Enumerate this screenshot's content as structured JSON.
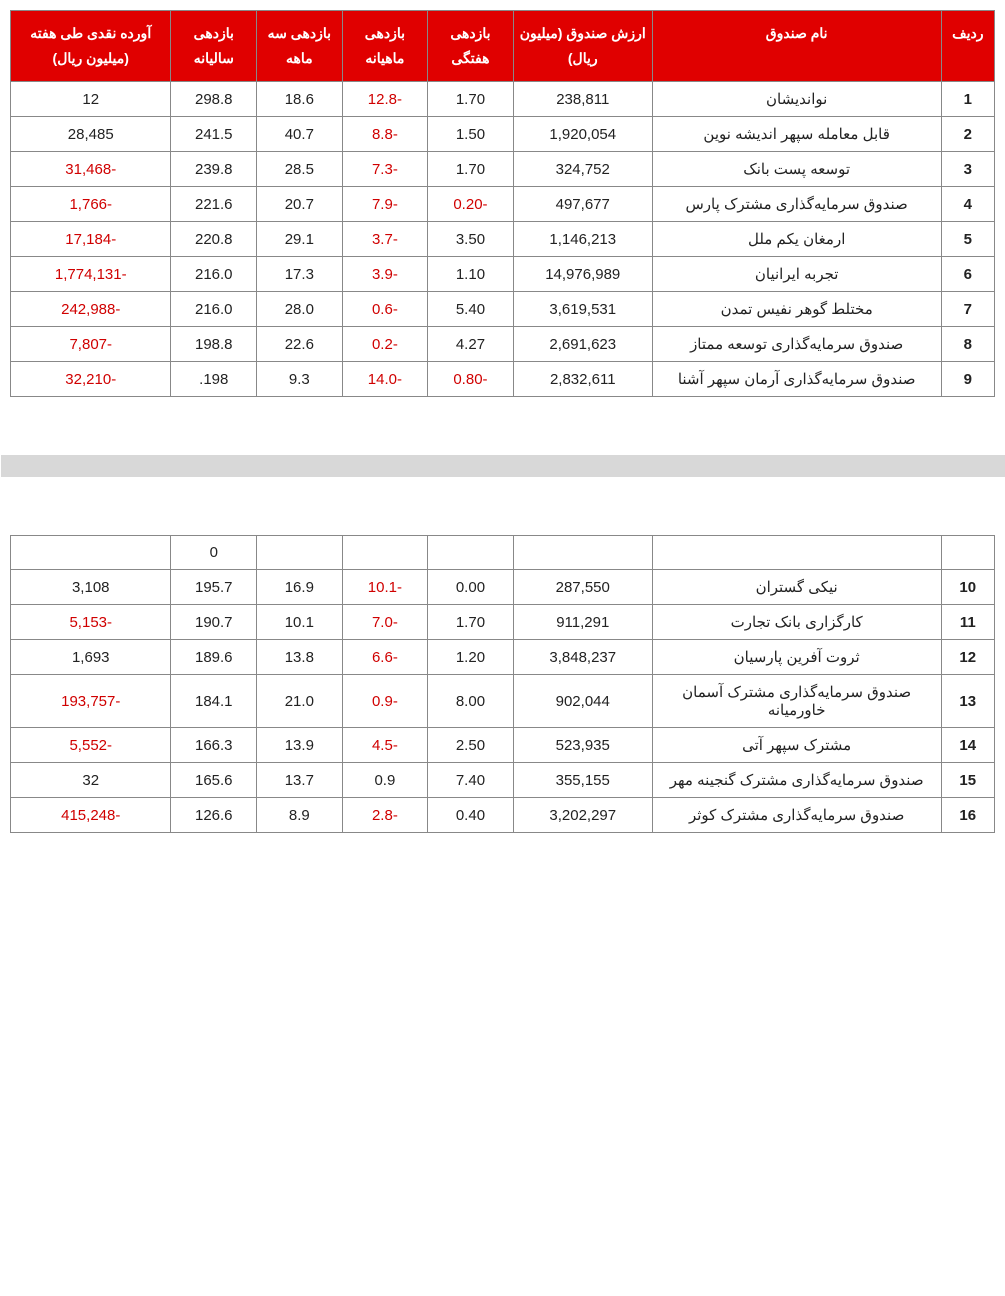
{
  "header": {
    "idx": "ردیف",
    "name": "نام صندوق",
    "value": "ارزش صندوق (میلیون ریال)",
    "weekly": "بازدهی هفتگی",
    "monthly": "بازدهی ماهیانه",
    "quarterly": "بازدهی سه ماهه",
    "yearly": "بازدهی سالیانه",
    "flow": "آورده نقدی طی هفته (میلیون ریال)"
  },
  "rows": [
    {
      "idx": "1",
      "name": "نواندیشان",
      "value": "238,811",
      "w": "1.70",
      "m": "-12.8",
      "q": "18.6",
      "y": "298.8",
      "flow": "12"
    },
    {
      "idx": "2",
      "name": "قابل معامله سپهر اندیشه نوین",
      "value": "1,920,054",
      "w": "1.50",
      "m": "-8.8",
      "q": "40.7",
      "y": "241.5",
      "flow": "28,485"
    },
    {
      "idx": "3",
      "name": "توسعه پست بانک",
      "value": "324,752",
      "w": "1.70",
      "m": "-7.3",
      "q": "28.5",
      "y": "239.8",
      "flow": "-31,468"
    },
    {
      "idx": "4",
      "name": "صندوق سرمایه‌گذاری مشترک پارس",
      "value": "497,677",
      "w": "-0.20",
      "m": "-7.9",
      "q": "20.7",
      "y": "221.6",
      "flow": "-1,766"
    },
    {
      "idx": "5",
      "name": "ارمغان یکم ملل",
      "value": "1,146,213",
      "w": "3.50",
      "m": "-3.7",
      "q": "29.1",
      "y": "220.8",
      "flow": "-17,184"
    },
    {
      "idx": "6",
      "name": "تجربه ایرانیان",
      "value": "14,976,989",
      "w": "1.10",
      "m": "-3.9",
      "q": "17.3",
      "y": "216.0",
      "flow": "-1,774,131"
    },
    {
      "idx": "7",
      "name": "مختلط گوهر نفیس تمدن",
      "value": "3,619,531",
      "w": "5.40",
      "m": "-0.6",
      "q": "28.0",
      "y": "216.0",
      "flow": "-242,988"
    },
    {
      "idx": "8",
      "name": "صندوق سرمایه‌گذاری توسعه ممتاز",
      "value": "2,691,623",
      "w": "4.27",
      "m": "-0.2",
      "q": "22.6",
      "y": "198.8",
      "flow": "-7,807"
    },
    {
      "idx": "9",
      "name": "صندوق سرمایه‌گذاری آرمان سپهر آشنا",
      "value": "2,832,611",
      "w": "-0.80",
      "m": "-14.0",
      "q": "9.3",
      "y": "198.",
      "flow": "-32,210"
    },
    {
      "gap": true
    },
    {
      "stub_y": "0"
    },
    {
      "idx": "10",
      "name": "نیکی گستران",
      "value": "287,550",
      "w": "0.00",
      "m": "-10.1",
      "q": "16.9",
      "y": "195.7",
      "flow": "3,108"
    },
    {
      "idx": "11",
      "name": "کارگزاری بانک تجارت",
      "value": "911,291",
      "w": "1.70",
      "m": "-7.0",
      "q": "10.1",
      "y": "190.7",
      "flow": "-5,153"
    },
    {
      "idx": "12",
      "name": "ثروت آفرین پارسیان",
      "value": "3,848,237",
      "w": "1.20",
      "m": "-6.6",
      "q": "13.8",
      "y": "189.6",
      "flow": "1,693"
    },
    {
      "idx": "13",
      "name": "صندوق سرمایه‌گذاری مشترک آسمان خاورمیانه",
      "value": "902,044",
      "w": "8.00",
      "m": "-0.9",
      "q": "21.0",
      "y": "184.1",
      "flow": "-193,757"
    },
    {
      "idx": "14",
      "name": "مشترک سپهر آتی",
      "value": "523,935",
      "w": "2.50",
      "m": "-4.5",
      "q": "13.9",
      "y": "166.3",
      "flow": "-5,552"
    },
    {
      "idx": "15",
      "name": "صندوق سرمایه‌گذاری مشترک گنجینه مهر",
      "value": "355,155",
      "w": "7.40",
      "m": "0.9",
      "q": "13.7",
      "y": "165.6",
      "flow": "32"
    },
    {
      "idx": "16",
      "name": "صندوق سرمایه‌گذاری مشترک کوثر",
      "value": "3,202,297",
      "w": "0.40",
      "m": "-2.8",
      "q": "8.9",
      "y": "126.6",
      "flow": "-415,248"
    }
  ]
}
